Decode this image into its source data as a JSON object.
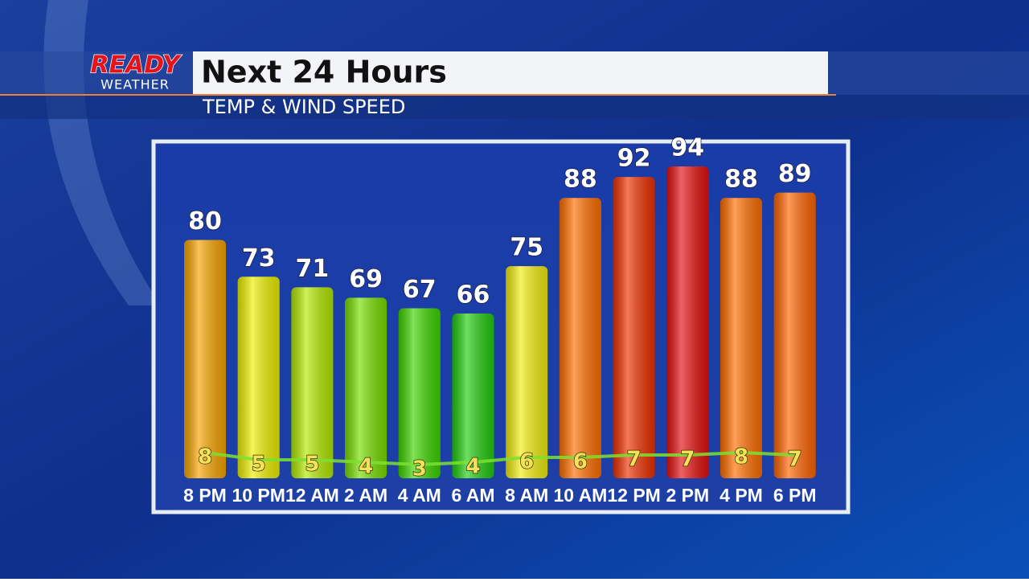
{
  "logo": {
    "top": "READY",
    "bottom": "WEATHER"
  },
  "chart_data": {
    "type": "bar",
    "title": "Next 24 Hours",
    "subtitle": "TEMP & WIND SPEED",
    "categories": [
      "8 PM",
      "10 PM",
      "12 AM",
      "2 AM",
      "4 AM",
      "6 AM",
      "8 AM",
      "10 AM",
      "12 PM",
      "2 PM",
      "4 PM",
      "6 PM"
    ],
    "series": [
      {
        "name": "Temp",
        "values": [
          80,
          73,
          71,
          69,
          67,
          66,
          75,
          88,
          92,
          94,
          88,
          89
        ],
        "colors": [
          "#f7a400",
          "#eef000",
          "#b4ea00",
          "#78de00",
          "#3ed400",
          "#22cc10",
          "#f2ee10",
          "#ff6e00",
          "#ee3000",
          "#e41010",
          "#ff6e00",
          "#ff6400"
        ]
      },
      {
        "name": "Wind Speed",
        "type": "line",
        "color": "#7ce030",
        "values": [
          8,
          5,
          5,
          4,
          3,
          4,
          6,
          6,
          7,
          7,
          8,
          7
        ]
      }
    ]
  }
}
